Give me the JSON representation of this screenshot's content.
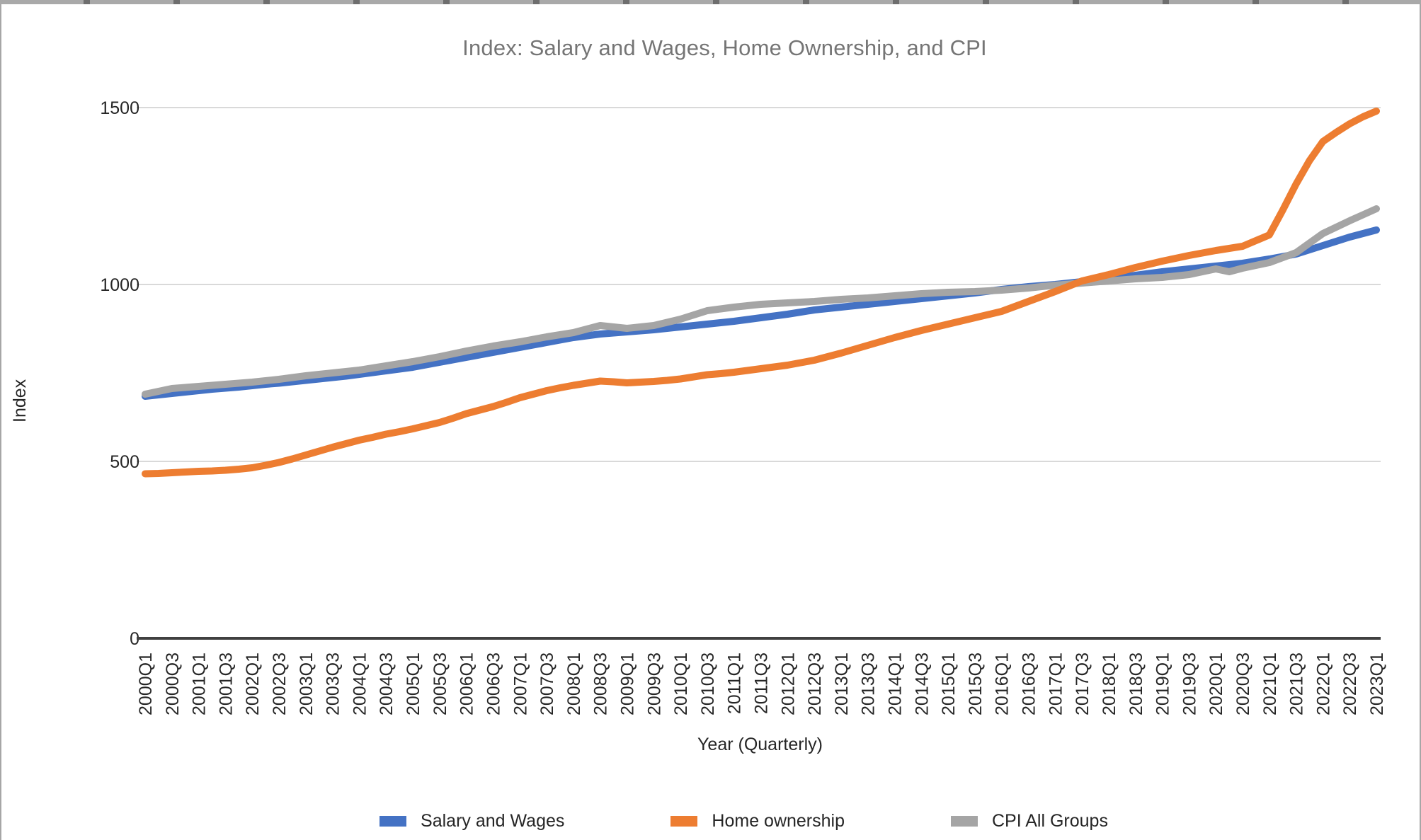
{
  "chart_data": {
    "type": "line",
    "title": "Index: Salary and Wages, Home Ownership, and CPI",
    "xlabel": "Year (Quarterly)",
    "ylabel": "Index",
    "ylim": [
      0,
      1500
    ],
    "y_ticks": [
      "0",
      "500",
      "1000",
      "1500"
    ],
    "grid": "horizontal",
    "legend_position": "bottom",
    "x_tick_labels": [
      "2000Q1",
      "2000Q3",
      "2001Q1",
      "2001Q3",
      "2002Q1",
      "2002Q3",
      "2003Q1",
      "2003Q3",
      "2004Q1",
      "2004Q3",
      "2005Q1",
      "2005Q3",
      "2006Q1",
      "2006Q3",
      "2007Q1",
      "2007Q3",
      "2008Q1",
      "2008Q3",
      "2009Q1",
      "2009Q3",
      "2010Q1",
      "2010Q3",
      "2011Q1",
      "2011Q3",
      "2012Q1",
      "2012Q3",
      "2013Q1",
      "2013Q3",
      "2014Q1",
      "2014Q3",
      "2015Q1",
      "2015Q3",
      "2016Q1",
      "2016Q3",
      "2017Q1",
      "2017Q3",
      "2018Q1",
      "2018Q3",
      "2019Q1",
      "2019Q3",
      "2020Q1",
      "2020Q3",
      "2021Q1",
      "2021Q3",
      "2022Q1",
      "2022Q3",
      "2023Q1"
    ],
    "x": [
      "2000Q1",
      "2000Q2",
      "2000Q3",
      "2000Q4",
      "2001Q1",
      "2001Q2",
      "2001Q3",
      "2001Q4",
      "2002Q1",
      "2002Q2",
      "2002Q3",
      "2002Q4",
      "2003Q1",
      "2003Q2",
      "2003Q3",
      "2003Q4",
      "2004Q1",
      "2004Q2",
      "2004Q3",
      "2004Q4",
      "2005Q1",
      "2005Q2",
      "2005Q3",
      "2005Q4",
      "2006Q1",
      "2006Q2",
      "2006Q3",
      "2006Q4",
      "2007Q1",
      "2007Q2",
      "2007Q3",
      "2007Q4",
      "2008Q1",
      "2008Q2",
      "2008Q3",
      "2008Q4",
      "2009Q1",
      "2009Q2",
      "2009Q3",
      "2009Q4",
      "2010Q1",
      "2010Q2",
      "2010Q3",
      "2010Q4",
      "2011Q1",
      "2011Q2",
      "2011Q3",
      "2011Q4",
      "2012Q1",
      "2012Q2",
      "2012Q3",
      "2012Q4",
      "2013Q1",
      "2013Q2",
      "2013Q3",
      "2013Q4",
      "2014Q1",
      "2014Q2",
      "2014Q3",
      "2014Q4",
      "2015Q1",
      "2015Q2",
      "2015Q3",
      "2015Q4",
      "2016Q1",
      "2016Q2",
      "2016Q3",
      "2016Q4",
      "2017Q1",
      "2017Q2",
      "2017Q3",
      "2017Q4",
      "2018Q1",
      "2018Q2",
      "2018Q3",
      "2018Q4",
      "2019Q1",
      "2019Q2",
      "2019Q3",
      "2019Q4",
      "2020Q1",
      "2020Q2",
      "2020Q3",
      "2020Q4",
      "2021Q1",
      "2021Q2",
      "2021Q3",
      "2021Q4",
      "2022Q1",
      "2022Q2",
      "2022Q3",
      "2022Q4",
      "2023Q1"
    ],
    "series": [
      {
        "name": "Salary and Wages",
        "color": "#4472C4",
        "values": [
          684,
          688,
          692,
          696,
          700,
          704,
          707,
          710,
          714,
          718,
          721,
          725,
          729,
          733,
          737,
          741,
          746,
          751,
          756,
          761,
          766,
          773,
          780,
          787,
          794,
          801,
          808,
          815,
          822,
          829,
          836,
          843,
          850,
          855,
          860,
          863,
          866,
          869,
          872,
          876,
          880,
          884,
          888,
          892,
          896,
          901,
          906,
          911,
          916,
          922,
          928,
          932,
          936,
          940,
          944,
          948,
          952,
          956,
          960,
          964,
          968,
          972,
          976,
          981,
          986,
          990,
          994,
          997,
          1000,
          1004,
          1008,
          1012,
          1016,
          1021,
          1026,
          1031,
          1036,
          1040,
          1044,
          1048,
          1052,
          1056,
          1060,
          1066,
          1072,
          1079,
          1086,
          1098,
          1110,
          1122,
          1134,
          1144,
          1154
        ]
      },
      {
        "name": "Home ownership",
        "color": "#ED7D31",
        "values": [
          465,
          466,
          468,
          470,
          472,
          473,
          475,
          478,
          482,
          489,
          497,
          507,
          518,
          529,
          540,
          550,
          560,
          568,
          577,
          584,
          592,
          601,
          610,
          622,
          635,
          645,
          655,
          667,
          680,
          690,
          700,
          708,
          715,
          721,
          727,
          725,
          722,
          724,
          726,
          729,
          733,
          739,
          745,
          748,
          752,
          757,
          762,
          767,
          772,
          779,
          786,
          796,
          806,
          817,
          828,
          839,
          850,
          860,
          870,
          879,
          888,
          897,
          906,
          915,
          924,
          938,
          952,
          966,
          980,
          995,
          1010,
          1019,
          1028,
          1038,
          1048,
          1057,
          1066,
          1074,
          1082,
          1089,
          1096,
          1102,
          1108,
          1124,
          1140,
          1210,
          1284,
          1350,
          1404,
          1430,
          1454,
          1474,
          1490
        ]
      },
      {
        "name": "CPI All Groups",
        "color": "#A5A5A5",
        "values": [
          690,
          698,
          706,
          709,
          712,
          715,
          718,
          721,
          724,
          728,
          732,
          737,
          742,
          746,
          750,
          754,
          758,
          764,
          770,
          776,
          782,
          789,
          796,
          804,
          812,
          819,
          826,
          832,
          838,
          845,
          852,
          858,
          864,
          874,
          884,
          880,
          876,
          880,
          884,
          893,
          902,
          914,
          926,
          931,
          936,
          940,
          944,
          946,
          948,
          950,
          952,
          955,
          958,
          960,
          962,
          965,
          968,
          971,
          974,
          976,
          978,
          979,
          980,
          982,
          984,
          987,
          990,
          994,
          998,
          1001,
          1004,
          1007,
          1010,
          1013,
          1016,
          1018,
          1020,
          1024,
          1028,
          1036,
          1044,
          1036,
          1046,
          1054,
          1062,
          1076,
          1090,
          1117,
          1144,
          1162,
          1180,
          1197,
          1214
        ]
      }
    ],
    "style": {
      "gridline_color": "#D9D9D9",
      "axis_line_color": "#404040",
      "title_color": "#757575",
      "tick_label_color": "#262626"
    }
  }
}
